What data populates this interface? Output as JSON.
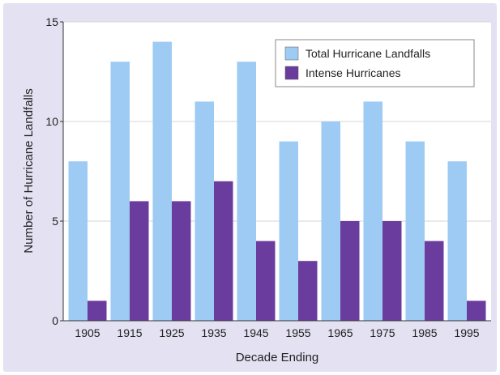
{
  "chart_data": {
    "type": "bar",
    "categories": [
      "1905",
      "1915",
      "1925",
      "1935",
      "1945",
      "1955",
      "1965",
      "1975",
      "1985",
      "1995"
    ],
    "series": [
      {
        "name": "Total Hurricane Landfalls",
        "color": "#9ecbf3",
        "values": [
          8,
          13,
          14,
          11,
          13,
          9,
          10,
          11,
          9,
          8
        ]
      },
      {
        "name": "Intense Hurricanes",
        "color": "#6a3c9e",
        "values": [
          1,
          6,
          6,
          7,
          4,
          3,
          5,
          5,
          4,
          1
        ]
      }
    ],
    "title": "",
    "xlabel": "Decade Ending",
    "ylabel": "Number of Hurricane Landfalls",
    "ylim": [
      0,
      15
    ],
    "yticks": [
      0,
      5,
      10,
      15
    ],
    "ytick_labels": [
      "0",
      "5",
      "10",
      "15"
    ],
    "grid": "horizontal",
    "legend_position": "top-right",
    "plot_background": "#ffffff",
    "frame_background": "#e3e1f2"
  }
}
